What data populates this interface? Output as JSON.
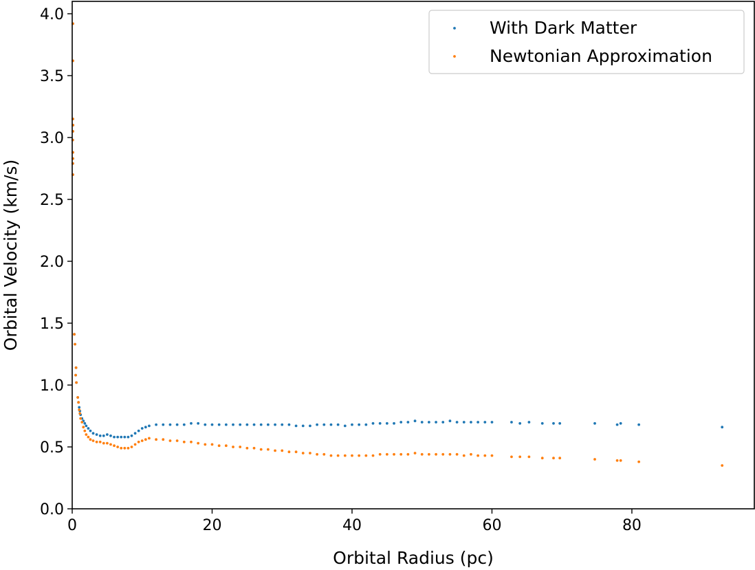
{
  "chart_data": {
    "type": "scatter",
    "title": "",
    "xlabel": "Orbital Radius (pc)",
    "ylabel": "Orbital Velocity (km/s)",
    "xlim": [
      0,
      97.5
    ],
    "ylim": [
      0,
      4.1
    ],
    "xticks": [
      0,
      20,
      40,
      60,
      80
    ],
    "yticks": [
      0.0,
      0.5,
      1.0,
      1.5,
      2.0,
      2.5,
      3.0,
      3.5,
      4.0
    ],
    "xtick_labels": [
      "0",
      "20",
      "40",
      "60",
      "80"
    ],
    "ytick_labels": [
      "0.0",
      "0.5",
      "1.0",
      "1.5",
      "2.0",
      "2.5",
      "3.0",
      "3.5",
      "4.0"
    ],
    "grid": false,
    "legend_position": "top-right",
    "series": [
      {
        "name": "With Dark Matter",
        "color": "#1f77b4",
        "points": [
          [
            0.1,
            3.92
          ],
          [
            0.1,
            3.62
          ],
          [
            0.1,
            3.15
          ],
          [
            0.12,
            3.1
          ],
          [
            0.1,
            3.05
          ],
          [
            0.08,
            2.98
          ],
          [
            0.1,
            2.88
          ],
          [
            0.1,
            2.83
          ],
          [
            0.09,
            2.79
          ],
          [
            0.1,
            2.7
          ],
          [
            0.3,
            1.41
          ],
          [
            0.4,
            1.33
          ],
          [
            0.55,
            1.14
          ],
          [
            0.5,
            1.08
          ],
          [
            0.6,
            1.02
          ],
          [
            0.8,
            0.9
          ],
          [
            0.9,
            0.86
          ],
          [
            1.0,
            0.82
          ],
          [
            1.1,
            0.79
          ],
          [
            1.2,
            0.76
          ],
          [
            1.4,
            0.73
          ],
          [
            1.6,
            0.71
          ],
          [
            1.8,
            0.69
          ],
          [
            2.0,
            0.67
          ],
          [
            2.3,
            0.65
          ],
          [
            2.6,
            0.63
          ],
          [
            3.0,
            0.61
          ],
          [
            3.5,
            0.6
          ],
          [
            4.0,
            0.59
          ],
          [
            4.5,
            0.59
          ],
          [
            5.0,
            0.6
          ],
          [
            5.5,
            0.59
          ],
          [
            6.0,
            0.58
          ],
          [
            6.5,
            0.58
          ],
          [
            7.0,
            0.58
          ],
          [
            7.5,
            0.58
          ],
          [
            8.0,
            0.58
          ],
          [
            8.5,
            0.59
          ],
          [
            9.0,
            0.61
          ],
          [
            9.5,
            0.63
          ],
          [
            10.0,
            0.65
          ],
          [
            10.5,
            0.66
          ],
          [
            11.0,
            0.67
          ],
          [
            12.0,
            0.68
          ],
          [
            13.0,
            0.68
          ],
          [
            14.0,
            0.68
          ],
          [
            15.0,
            0.68
          ],
          [
            16.0,
            0.68
          ],
          [
            17.0,
            0.69
          ],
          [
            18.0,
            0.69
          ],
          [
            19.0,
            0.68
          ],
          [
            20.0,
            0.68
          ],
          [
            21.0,
            0.68
          ],
          [
            22.0,
            0.68
          ],
          [
            23.0,
            0.68
          ],
          [
            24.0,
            0.68
          ],
          [
            25.0,
            0.68
          ],
          [
            26.0,
            0.68
          ],
          [
            27.0,
            0.68
          ],
          [
            28.0,
            0.68
          ],
          [
            29.0,
            0.68
          ],
          [
            30.0,
            0.68
          ],
          [
            31.0,
            0.68
          ],
          [
            32.0,
            0.67
          ],
          [
            33.0,
            0.67
          ],
          [
            34.0,
            0.67
          ],
          [
            35.0,
            0.68
          ],
          [
            36.0,
            0.68
          ],
          [
            37.0,
            0.68
          ],
          [
            38.0,
            0.68
          ],
          [
            39.0,
            0.67
          ],
          [
            40.0,
            0.68
          ],
          [
            41.0,
            0.68
          ],
          [
            42.0,
            0.68
          ],
          [
            43.0,
            0.69
          ],
          [
            44.0,
            0.69
          ],
          [
            45.0,
            0.69
          ],
          [
            46.0,
            0.69
          ],
          [
            47.0,
            0.7
          ],
          [
            48.0,
            0.7
          ],
          [
            49.0,
            0.71
          ],
          [
            50.0,
            0.7
          ],
          [
            51.0,
            0.7
          ],
          [
            52.0,
            0.7
          ],
          [
            53.0,
            0.7
          ],
          [
            54.0,
            0.71
          ],
          [
            55.0,
            0.7
          ],
          [
            56.0,
            0.7
          ],
          [
            57.0,
            0.7
          ],
          [
            58.0,
            0.7
          ],
          [
            59.0,
            0.7
          ],
          [
            60.0,
            0.7
          ],
          [
            62.8,
            0.7
          ],
          [
            64.0,
            0.69
          ],
          [
            65.3,
            0.7
          ],
          [
            67.2,
            0.69
          ],
          [
            68.8,
            0.69
          ],
          [
            69.7,
            0.69
          ],
          [
            74.7,
            0.69
          ],
          [
            77.9,
            0.68
          ],
          [
            78.4,
            0.69
          ],
          [
            81.0,
            0.68
          ],
          [
            92.9,
            0.66
          ]
        ]
      },
      {
        "name": "Newtonian Approximation",
        "color": "#ff7f0e",
        "points": [
          [
            0.1,
            3.92
          ],
          [
            0.1,
            3.62
          ],
          [
            0.1,
            3.15
          ],
          [
            0.12,
            3.1
          ],
          [
            0.1,
            3.05
          ],
          [
            0.08,
            2.98
          ],
          [
            0.1,
            2.88
          ],
          [
            0.1,
            2.83
          ],
          [
            0.09,
            2.79
          ],
          [
            0.1,
            2.7
          ],
          [
            0.3,
            1.41
          ],
          [
            0.4,
            1.33
          ],
          [
            0.55,
            1.14
          ],
          [
            0.5,
            1.08
          ],
          [
            0.6,
            1.02
          ],
          [
            0.8,
            0.9
          ],
          [
            0.9,
            0.86
          ],
          [
            1.0,
            0.8
          ],
          [
            1.1,
            0.77
          ],
          [
            1.2,
            0.73
          ],
          [
            1.4,
            0.7
          ],
          [
            1.6,
            0.66
          ],
          [
            1.8,
            0.63
          ],
          [
            2.0,
            0.6
          ],
          [
            2.3,
            0.58
          ],
          [
            2.6,
            0.56
          ],
          [
            3.0,
            0.55
          ],
          [
            3.5,
            0.54
          ],
          [
            4.0,
            0.54
          ],
          [
            4.5,
            0.53
          ],
          [
            5.0,
            0.53
          ],
          [
            5.5,
            0.52
          ],
          [
            6.0,
            0.51
          ],
          [
            6.5,
            0.5
          ],
          [
            7.0,
            0.49
          ],
          [
            7.5,
            0.49
          ],
          [
            8.0,
            0.49
          ],
          [
            8.5,
            0.5
          ],
          [
            9.0,
            0.52
          ],
          [
            9.5,
            0.54
          ],
          [
            10.0,
            0.55
          ],
          [
            10.5,
            0.56
          ],
          [
            11.0,
            0.57
          ],
          [
            12.0,
            0.56
          ],
          [
            13.0,
            0.56
          ],
          [
            14.0,
            0.55
          ],
          [
            15.0,
            0.55
          ],
          [
            16.0,
            0.54
          ],
          [
            17.0,
            0.54
          ],
          [
            18.0,
            0.53
          ],
          [
            19.0,
            0.52
          ],
          [
            20.0,
            0.52
          ],
          [
            21.0,
            0.51
          ],
          [
            22.0,
            0.51
          ],
          [
            23.0,
            0.5
          ],
          [
            24.0,
            0.5
          ],
          [
            25.0,
            0.49
          ],
          [
            26.0,
            0.49
          ],
          [
            27.0,
            0.48
          ],
          [
            28.0,
            0.48
          ],
          [
            29.0,
            0.47
          ],
          [
            30.0,
            0.47
          ],
          [
            31.0,
            0.46
          ],
          [
            32.0,
            0.46
          ],
          [
            33.0,
            0.45
          ],
          [
            34.0,
            0.45
          ],
          [
            35.0,
            0.44
          ],
          [
            36.0,
            0.44
          ],
          [
            37.0,
            0.43
          ],
          [
            38.0,
            0.43
          ],
          [
            39.0,
            0.43
          ],
          [
            40.0,
            0.43
          ],
          [
            41.0,
            0.43
          ],
          [
            42.0,
            0.43
          ],
          [
            43.0,
            0.43
          ],
          [
            44.0,
            0.44
          ],
          [
            45.0,
            0.44
          ],
          [
            46.0,
            0.44
          ],
          [
            47.0,
            0.44
          ],
          [
            48.0,
            0.44
          ],
          [
            49.0,
            0.45
          ],
          [
            50.0,
            0.44
          ],
          [
            51.0,
            0.44
          ],
          [
            52.0,
            0.44
          ],
          [
            53.0,
            0.44
          ],
          [
            54.0,
            0.44
          ],
          [
            55.0,
            0.44
          ],
          [
            56.0,
            0.43
          ],
          [
            57.0,
            0.44
          ],
          [
            58.0,
            0.43
          ],
          [
            59.0,
            0.43
          ],
          [
            60.0,
            0.43
          ],
          [
            62.8,
            0.42
          ],
          [
            64.0,
            0.42
          ],
          [
            65.3,
            0.42
          ],
          [
            67.2,
            0.41
          ],
          [
            68.8,
            0.41
          ],
          [
            69.7,
            0.41
          ],
          [
            74.7,
            0.4
          ],
          [
            77.9,
            0.39
          ],
          [
            78.4,
            0.39
          ],
          [
            81.0,
            0.38
          ],
          [
            92.9,
            0.35
          ]
        ]
      }
    ]
  }
}
